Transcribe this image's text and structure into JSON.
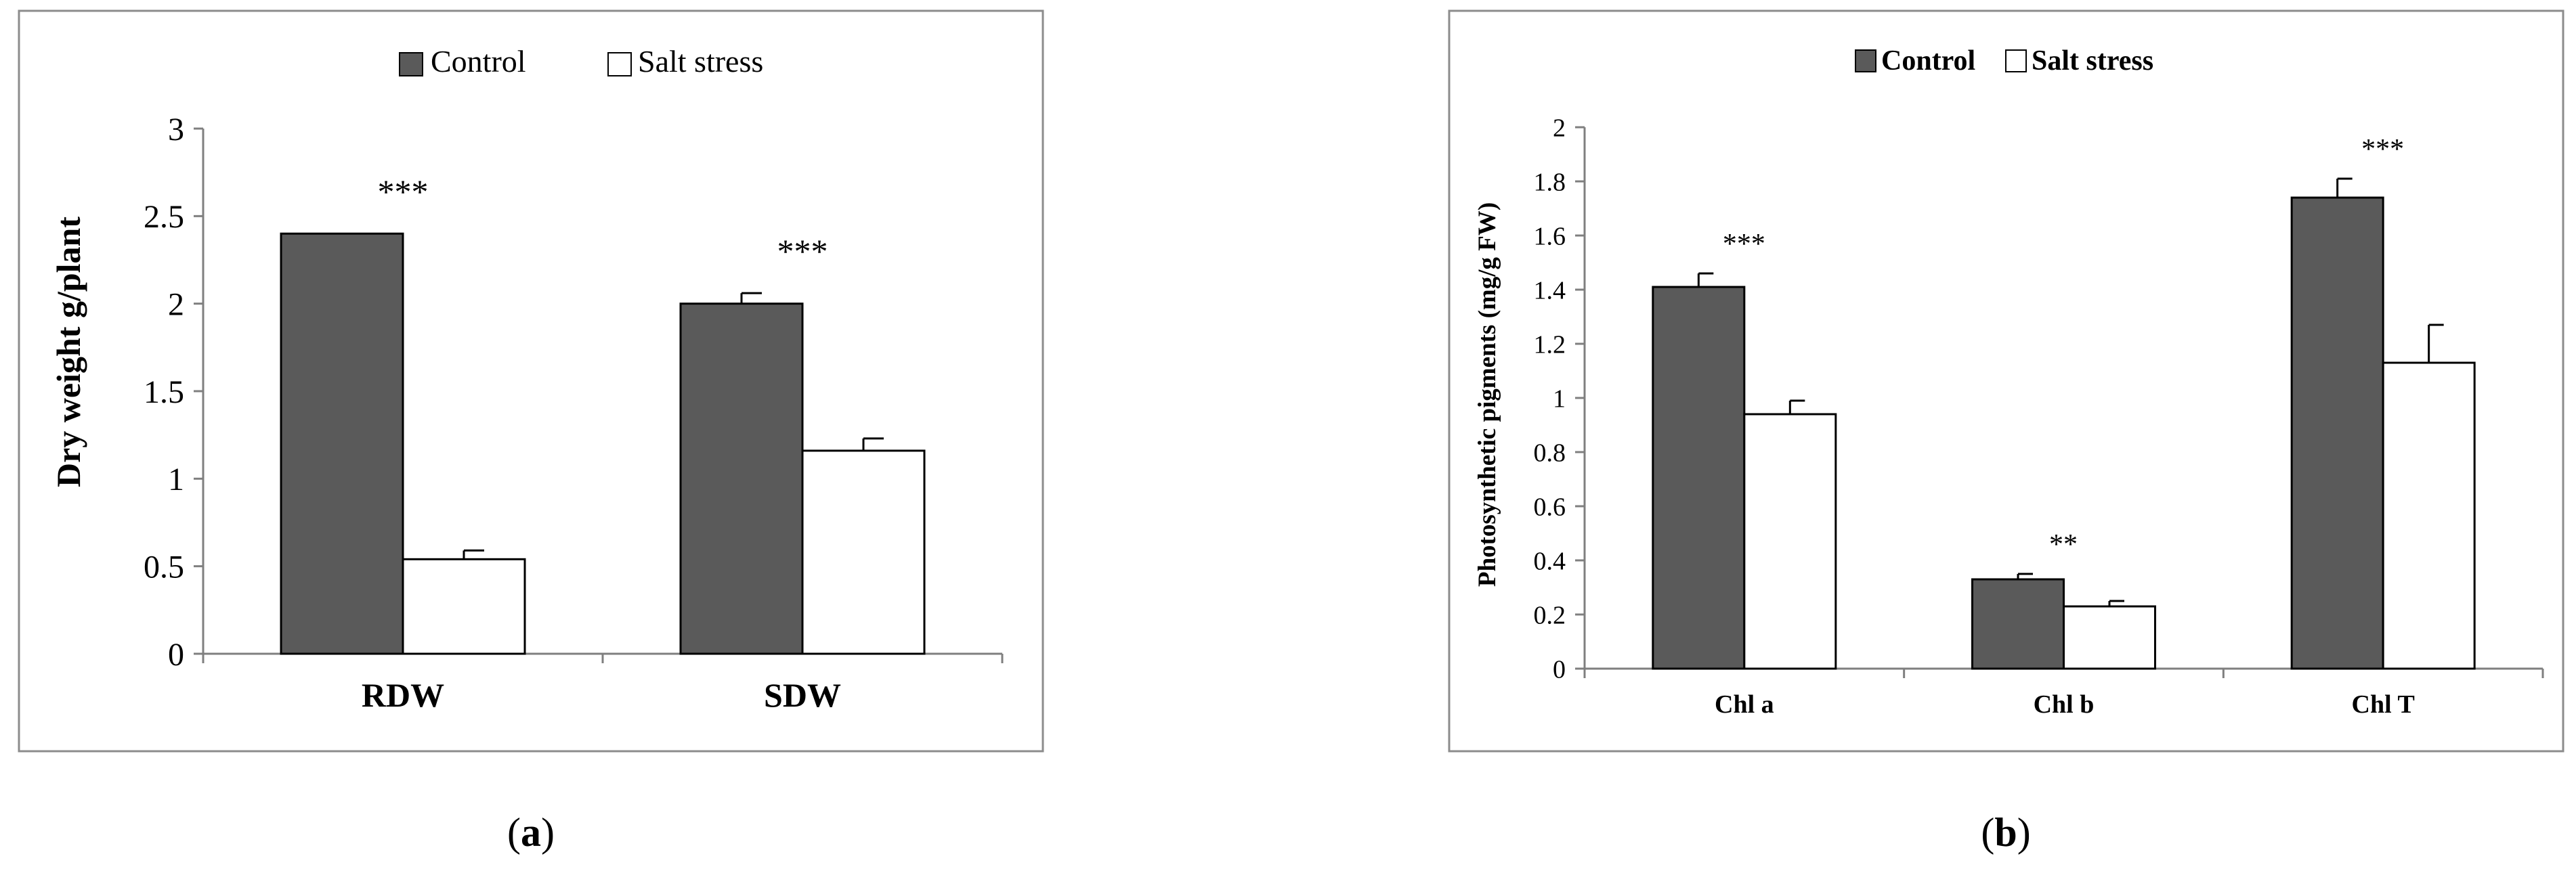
{
  "colors": {
    "control": "#5a5a5a",
    "salt_stress": "#ffffff",
    "bar_stroke": "#000000",
    "panel_border": "#8c8c8c",
    "axis": "#7f7f7f"
  },
  "chart_data": [
    {
      "type": "bar",
      "panel_label": "a",
      "categories": [
        "RDW",
        "SDW"
      ],
      "series": [
        {
          "name": "Control",
          "values": [
            2.4,
            2.0
          ],
          "errors": [
            0.0,
            0.06
          ]
        },
        {
          "name": "Salt stress",
          "values": [
            0.54,
            1.16
          ],
          "errors": [
            0.05,
            0.07
          ]
        }
      ],
      "significance": [
        "***",
        "***"
      ],
      "ylabel": "Dry weight g/plant",
      "xlabel": "",
      "ylim": [
        0,
        3
      ],
      "yticks": [
        0,
        0.5,
        1,
        1.5,
        2,
        2.5,
        3
      ],
      "ytick_labels": [
        "0",
        "0.5",
        "1",
        "1.5",
        "2",
        "2.5",
        "3"
      ],
      "legend_position": "top",
      "grid": false
    },
    {
      "type": "bar",
      "panel_label": "b",
      "categories": [
        "Chl a",
        "Chl b",
        "Chl T"
      ],
      "series": [
        {
          "name": "Control",
          "values": [
            1.41,
            0.33,
            1.74
          ],
          "errors": [
            0.05,
            0.02,
            0.07
          ]
        },
        {
          "name": "Salt stress",
          "values": [
            0.94,
            0.23,
            1.13
          ],
          "errors": [
            0.05,
            0.02,
            0.14
          ]
        }
      ],
      "significance": [
        "***",
        "**",
        "***"
      ],
      "ylabel": "Photosynthetic pigments (mg/g FW)",
      "xlabel": "",
      "ylim": [
        0,
        2
      ],
      "yticks": [
        0,
        0.2,
        0.4,
        0.6,
        0.8,
        1,
        1.2,
        1.4,
        1.6,
        1.8,
        2
      ],
      "ytick_labels": [
        "0",
        "0.2",
        "0.4",
        "0.6",
        "0.8",
        "1",
        "1.2",
        "1.4",
        "1.6",
        "1.8",
        "2"
      ],
      "legend_position": "top",
      "grid": false
    }
  ]
}
